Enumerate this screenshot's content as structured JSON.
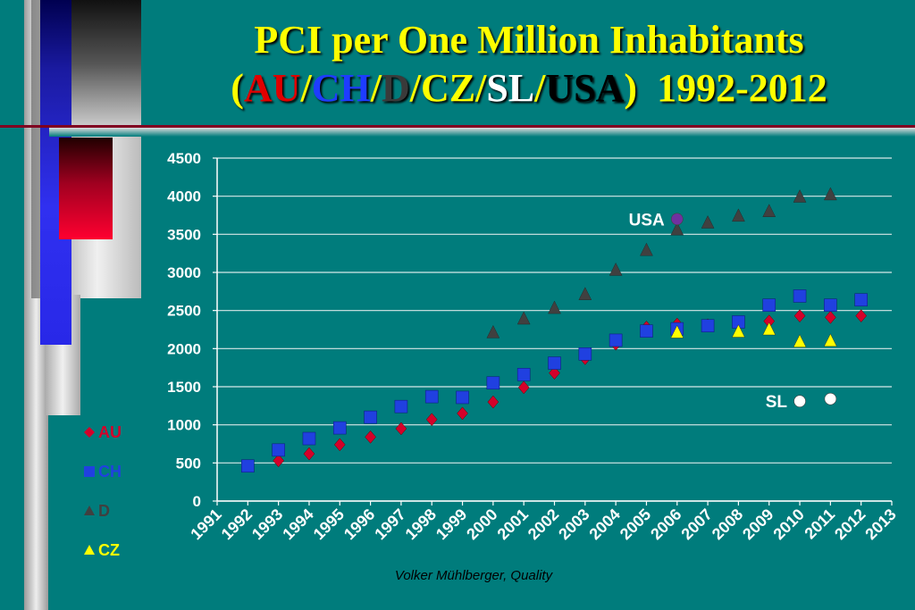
{
  "title": {
    "line1": "PCI per One Million Inhabitants",
    "open_paren": "(",
    "parts": [
      {
        "text": "AU",
        "color": "#E00000"
      },
      {
        "text": "/",
        "color": "#FFFF00"
      },
      {
        "text": "CH",
        "color": "#1E3CFF"
      },
      {
        "text": "/",
        "color": "#FFFF00"
      },
      {
        "text": "D",
        "color": "#3A3A3A"
      },
      {
        "text": "/CZ/",
        "color": "#FFFF00"
      },
      {
        "text": "SL",
        "color": "#FFFFFF"
      },
      {
        "text": "/",
        "color": "#FFFF00"
      },
      {
        "text": "USA",
        "color": "#000000"
      }
    ],
    "close_paren": ")",
    "years": "1992-2012"
  },
  "footer": "Volker Mühlberger, Quality",
  "colors": {
    "background": "#007C7C",
    "title": "#FFFF00",
    "AU": "#D4002A",
    "CH": "#2040E0",
    "D": "#404040",
    "CZ": "#FFFF00",
    "SL": "#FFFFFF",
    "USA": "#7030A0"
  },
  "legend": [
    {
      "label": "AU",
      "marker": "diamond",
      "color": "#D4002A"
    },
    {
      "label": "CH",
      "marker": "square",
      "color": "#2040E0"
    },
    {
      "label": "D",
      "marker": "triangle",
      "color": "#404040"
    },
    {
      "label": "CZ",
      "marker": "triangle",
      "color": "#FFFF00"
    }
  ],
  "chart_data": {
    "type": "scatter",
    "xlim": [
      1991,
      2013
    ],
    "ylim": [
      0,
      4500
    ],
    "x_ticks": [
      "1991",
      "1992",
      "1993",
      "1994",
      "1995",
      "1996",
      "1997",
      "1998",
      "1999",
      "2000",
      "2001",
      "2002",
      "2003",
      "2004",
      "2005",
      "2006",
      "2007",
      "2008",
      "2009",
      "2010",
      "2011",
      "2012",
      "2013"
    ],
    "y_ticks": [
      "0",
      "500",
      "1000",
      "1500",
      "2000",
      "2500",
      "3000",
      "3500",
      "4000",
      "4500"
    ],
    "grid": true,
    "legend_position": "left",
    "annotations": [
      {
        "text": "USA",
        "x": 2006,
        "y": 3700
      },
      {
        "text": "SL",
        "x": 2010,
        "y": 1310
      }
    ],
    "series": [
      {
        "name": "AU",
        "marker": "diamond",
        "color": "#D4002A",
        "points": [
          [
            1993,
            530
          ],
          [
            1994,
            620
          ],
          [
            1995,
            740
          ],
          [
            1996,
            840
          ],
          [
            1997,
            950
          ],
          [
            1998,
            1070
          ],
          [
            1999,
            1150
          ],
          [
            2000,
            1300
          ],
          [
            2001,
            1490
          ],
          [
            2002,
            1680
          ],
          [
            2003,
            1870
          ],
          [
            2004,
            2060
          ],
          [
            2005,
            2280
          ],
          [
            2006,
            2320
          ],
          [
            2007,
            2310
          ],
          [
            2008,
            2320
          ],
          [
            2009,
            2360
          ],
          [
            2010,
            2430
          ],
          [
            2011,
            2410
          ],
          [
            2012,
            2430
          ]
        ]
      },
      {
        "name": "CH",
        "marker": "square",
        "color": "#2040E0",
        "points": [
          [
            1992,
            460
          ],
          [
            1993,
            670
          ],
          [
            1994,
            820
          ],
          [
            1995,
            960
          ],
          [
            1996,
            1100
          ],
          [
            1997,
            1240
          ],
          [
            1998,
            1370
          ],
          [
            1999,
            1360
          ],
          [
            2000,
            1550
          ],
          [
            2001,
            1660
          ],
          [
            2002,
            1810
          ],
          [
            2003,
            1930
          ],
          [
            2004,
            2110
          ],
          [
            2005,
            2230
          ],
          [
            2006,
            2260
          ],
          [
            2007,
            2300
          ],
          [
            2008,
            2350
          ],
          [
            2009,
            2570
          ],
          [
            2010,
            2690
          ],
          [
            2011,
            2570
          ],
          [
            2012,
            2640
          ]
        ]
      },
      {
        "name": "D",
        "marker": "triangle",
        "color": "#404040",
        "points": [
          [
            2000,
            2210
          ],
          [
            2001,
            2390
          ],
          [
            2002,
            2530
          ],
          [
            2003,
            2710
          ],
          [
            2004,
            3030
          ],
          [
            2005,
            3290
          ],
          [
            2006,
            3560
          ],
          [
            2007,
            3650
          ],
          [
            2008,
            3740
          ],
          [
            2009,
            3800
          ],
          [
            2010,
            3990
          ],
          [
            2011,
            4020
          ]
        ]
      },
      {
        "name": "CZ",
        "marker": "triangle",
        "color": "#FFFF00",
        "points": [
          [
            2006,
            2210
          ],
          [
            2008,
            2220
          ],
          [
            2009,
            2250
          ],
          [
            2010,
            2090
          ],
          [
            2011,
            2100
          ]
        ]
      },
      {
        "name": "SL",
        "marker": "circle",
        "color": "#FFFFFF",
        "points": [
          [
            2010,
            1310
          ],
          [
            2011,
            1340
          ]
        ]
      },
      {
        "name": "USA",
        "marker": "circle",
        "color": "#7030A0",
        "points": [
          [
            2006,
            3700
          ]
        ]
      }
    ]
  }
}
